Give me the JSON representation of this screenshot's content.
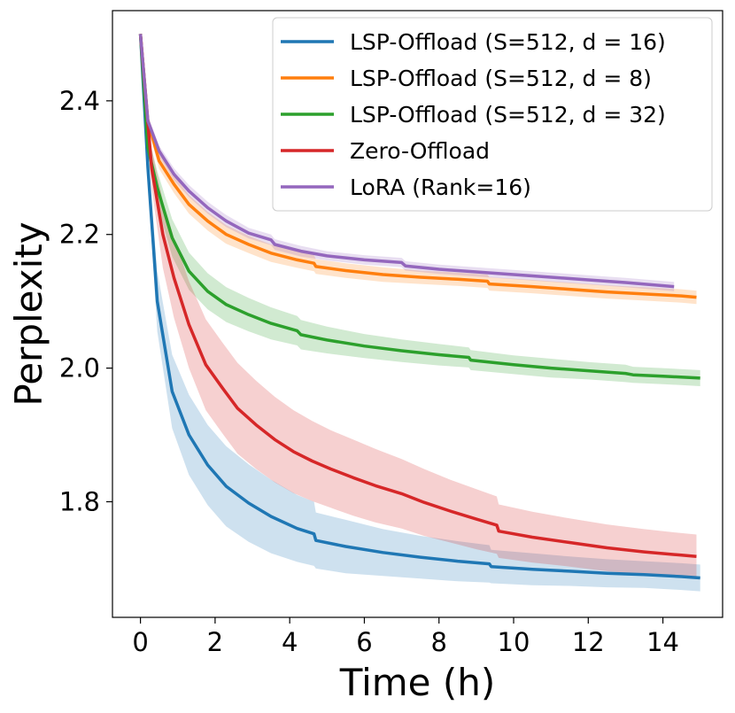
{
  "chart_data": {
    "type": "line",
    "xlabel": "Time (h)",
    "ylabel": "Perplexity",
    "xlim": [
      -0.75,
      15.6
    ],
    "ylim": [
      1.627,
      2.535
    ],
    "xticks": [
      0,
      2,
      4,
      6,
      8,
      10,
      12,
      14
    ],
    "yticks": [
      1.8,
      2.0,
      2.2,
      2.4
    ],
    "ytick_labels": [
      "1.8",
      "2.0",
      "2.2",
      "2.4"
    ],
    "grid": false,
    "legend_position": "top-right",
    "series": [
      {
        "name": "LSP-Offload (S=512, d = 16)",
        "color": "#1f77b4",
        "x": [
          0,
          0.2,
          0.45,
          0.85,
          1.3,
          1.8,
          2.3,
          2.9,
          3.5,
          4.2,
          4.65,
          4.7,
          5.5,
          6.5,
          7.5,
          8.5,
          9.35,
          9.4,
          10.5,
          11.5,
          12.5,
          13.5,
          14.5,
          15.0
        ],
        "y": [
          2.5,
          2.3,
          2.1,
          1.965,
          1.9,
          1.855,
          1.823,
          1.798,
          1.778,
          1.76,
          1.752,
          1.742,
          1.733,
          1.724,
          1.717,
          1.711,
          1.707,
          1.703,
          1.699,
          1.696,
          1.693,
          1.691,
          1.688,
          1.686
        ],
        "band": [
          0.0,
          0.02,
          0.045,
          0.055,
          0.06,
          0.06,
          0.06,
          0.058,
          0.055,
          0.05,
          0.048,
          0.042,
          0.04,
          0.035,
          0.032,
          0.03,
          0.028,
          0.025,
          0.024,
          0.022,
          0.021,
          0.02,
          0.02,
          0.02
        ]
      },
      {
        "name": "LSP-Offload (S=512, d = 8)",
        "color": "#ff7f0e",
        "x": [
          0,
          0.2,
          0.5,
          0.9,
          1.3,
          1.8,
          2.3,
          2.9,
          3.5,
          4.2,
          4.65,
          4.7,
          5.5,
          6.5,
          7.5,
          8.5,
          9.3,
          9.35,
          10.5,
          11.5,
          12.5,
          13.5,
          14.5,
          14.9
        ],
        "y": [
          2.5,
          2.37,
          2.31,
          2.275,
          2.245,
          2.22,
          2.2,
          2.185,
          2.172,
          2.162,
          2.157,
          2.152,
          2.146,
          2.14,
          2.136,
          2.133,
          2.13,
          2.126,
          2.122,
          2.118,
          2.114,
          2.111,
          2.108,
          2.106
        ],
        "band": [
          0.0,
          0.01,
          0.012,
          0.013,
          0.014,
          0.014,
          0.014,
          0.013,
          0.013,
          0.012,
          0.012,
          0.011,
          0.011,
          0.011,
          0.01,
          0.01,
          0.01,
          0.01,
          0.01,
          0.01,
          0.01,
          0.01,
          0.01,
          0.01
        ]
      },
      {
        "name": "LSP-Offload (S=512, d = 32)",
        "color": "#2ca02c",
        "x": [
          0,
          0.2,
          0.45,
          0.85,
          1.3,
          1.8,
          2.3,
          2.9,
          3.5,
          4.2,
          4.3,
          5.0,
          6.0,
          7.0,
          8.0,
          8.8,
          8.85,
          10.0,
          11.0,
          12.0,
          13.0,
          13.2,
          14.0,
          15.0
        ],
        "y": [
          2.5,
          2.33,
          2.27,
          2.195,
          2.145,
          2.115,
          2.095,
          2.08,
          2.067,
          2.056,
          2.05,
          2.042,
          2.033,
          2.026,
          2.02,
          2.016,
          2.012,
          2.005,
          2.0,
          1.996,
          1.992,
          1.99,
          1.988,
          1.985
        ],
        "band": [
          0.0,
          0.02,
          0.025,
          0.028,
          0.028,
          0.027,
          0.026,
          0.025,
          0.024,
          0.022,
          0.022,
          0.02,
          0.018,
          0.017,
          0.016,
          0.015,
          0.015,
          0.014,
          0.014,
          0.013,
          0.013,
          0.012,
          0.012,
          0.012
        ]
      },
      {
        "name": "Zero-Offload",
        "color": "#d62728",
        "x": [
          0,
          0.3,
          0.6,
          0.9,
          1.3,
          1.75,
          2.2,
          2.6,
          3.1,
          3.6,
          4.1,
          4.6,
          5.1,
          5.7,
          6.3,
          7.0,
          7.6,
          8.3,
          9.0,
          9.55,
          9.6,
          10.5,
          11.5,
          12.5,
          13.5,
          14.5,
          14.9
        ],
        "y": [
          2.5,
          2.3,
          2.2,
          2.135,
          2.065,
          2.005,
          1.97,
          1.94,
          1.915,
          1.893,
          1.875,
          1.861,
          1.849,
          1.836,
          1.824,
          1.812,
          1.799,
          1.786,
          1.774,
          1.765,
          1.756,
          1.747,
          1.739,
          1.731,
          1.725,
          1.72,
          1.718
        ],
        "band": [
          0.0,
          0.03,
          0.05,
          0.06,
          0.065,
          0.068,
          0.068,
          0.068,
          0.066,
          0.064,
          0.062,
          0.06,
          0.058,
          0.057,
          0.055,
          0.052,
          0.05,
          0.047,
          0.045,
          0.043,
          0.04,
          0.038,
          0.036,
          0.035,
          0.034,
          0.033,
          0.033
        ]
      },
      {
        "name": "LoRA (Rank=16)",
        "color": "#9467bd",
        "x": [
          0,
          0.2,
          0.5,
          0.9,
          1.3,
          1.8,
          2.3,
          2.9,
          3.5,
          3.6,
          4.3,
          5.0,
          6.0,
          7.0,
          7.1,
          8.0,
          9.0,
          10.0,
          11.0,
          12.0,
          13.0,
          14.3
        ],
        "y": [
          2.5,
          2.37,
          2.325,
          2.29,
          2.265,
          2.24,
          2.22,
          2.202,
          2.192,
          2.185,
          2.175,
          2.168,
          2.162,
          2.158,
          2.153,
          2.148,
          2.144,
          2.14,
          2.136,
          2.132,
          2.128,
          2.122
        ],
        "band": [
          0.0,
          0.008,
          0.008,
          0.009,
          0.009,
          0.009,
          0.009,
          0.008,
          0.008,
          0.008,
          0.008,
          0.007,
          0.007,
          0.007,
          0.007,
          0.007,
          0.007,
          0.007,
          0.007,
          0.007,
          0.007,
          0.007
        ]
      }
    ]
  }
}
